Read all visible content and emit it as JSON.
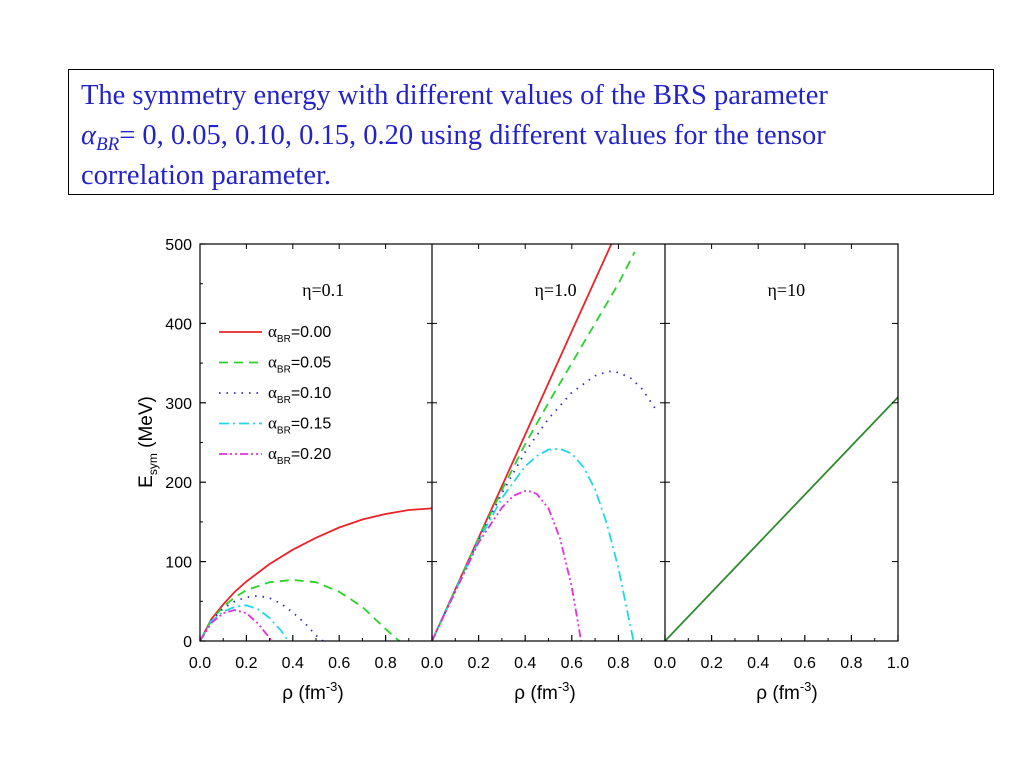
{
  "caption": {
    "line1": "The symmetry energy with different values of the BRS parameter",
    "alpha_symbol": "α",
    "alpha_sub": "BR",
    "line2_rest": "= 0, 0.05, 0.10, 0.15, 0.20 using different values for the tensor",
    "line3": "correlation parameter."
  },
  "chart_data": {
    "type": "line",
    "ylabel": "E",
    "ylabel_sub": "sym",
    "ylabel_unit": " (MeV)",
    "xlabel_base": "ρ (fm",
    "xlabel_exp": "-3",
    "xlabel_close": ")",
    "ylim": [
      0,
      500
    ],
    "xlim": [
      0,
      1.0
    ],
    "y_ticks": [
      "0",
      "100",
      "200",
      "300",
      "400",
      "500"
    ],
    "x_ticks": [
      [
        "0.0",
        "0.2",
        "0.4",
        "0.6",
        "0.8"
      ],
      [
        "0.0",
        "0.2",
        "0.4",
        "0.6",
        "0.8"
      ],
      [
        "0.0",
        "0.2",
        "0.4",
        "0.6",
        "0.8",
        "1.0"
      ]
    ],
    "legend": {
      "placement": "upper-left of first panel",
      "symbol": "α",
      "subscript": "BR",
      "entries": [
        "=0.00",
        "=0.05",
        "=0.10",
        "=0.15",
        "=0.20"
      ]
    },
    "series_styles": [
      {
        "color": "#e8242a",
        "dash": ""
      },
      {
        "color": "#2bd12b",
        "dash": "9,6"
      },
      {
        "color": "#2a2ad8",
        "dash": "1.5,6"
      },
      {
        "color": "#1ed8e8",
        "dash": "10,4,2,4"
      },
      {
        "color": "#e030e0",
        "dash": "8,3,2,3,2,3"
      }
    ],
    "panels": [
      {
        "label": "η=0.1",
        "series": [
          {
            "x": [
              0,
              0.05,
              0.1,
              0.15,
              0.2,
              0.3,
              0.4,
              0.5,
              0.6,
              0.7,
              0.8,
              0.9,
              1.0
            ],
            "y": [
              0,
              28,
              46,
              62,
              75,
              97,
              115,
              130,
              143,
              153,
              160,
              165,
              167
            ]
          },
          {
            "x": [
              0,
              0.05,
              0.1,
              0.15,
              0.2,
              0.3,
              0.4,
              0.5,
              0.6,
              0.7,
              0.8,
              0.86
            ],
            "y": [
              0,
              27,
              43,
              55,
              64,
              74,
              77,
              74,
              62,
              43,
              15,
              0
            ]
          },
          {
            "x": [
              0,
              0.05,
              0.1,
              0.15,
              0.2,
              0.25,
              0.3,
              0.35,
              0.4,
              0.45,
              0.5,
              0.53
            ],
            "y": [
              0,
              26,
              41,
              50,
              55,
              57,
              54,
              47,
              36,
              23,
              7,
              0
            ]
          },
          {
            "x": [
              0,
              0.05,
              0.1,
              0.15,
              0.2,
              0.25,
              0.3,
              0.35,
              0.38
            ],
            "y": [
              0,
              25,
              37,
              43,
              45,
              40,
              29,
              13,
              0
            ]
          },
          {
            "x": [
              0,
              0.05,
              0.1,
              0.15,
              0.2,
              0.25,
              0.28,
              0.31
            ],
            "y": [
              0,
              23,
              35,
              39,
              35,
              22,
              11,
              0
            ]
          }
        ]
      },
      {
        "label": "η=1.0",
        "series": [
          {
            "x": [
              0,
              0.2,
              0.4,
              0.6,
              0.77
            ],
            "y": [
              0,
              130,
              260,
              390,
              500
            ]
          },
          {
            "x": [
              0,
              0.2,
              0.3,
              0.4,
              0.5,
              0.6,
              0.7,
              0.8,
              0.87
            ],
            "y": [
              0,
              129,
              190,
              248,
              300,
              350,
              400,
              450,
              490
            ]
          },
          {
            "x": [
              0,
              0.2,
              0.3,
              0.4,
              0.5,
              0.6,
              0.7,
              0.75,
              0.78,
              0.85,
              0.9,
              0.96
            ],
            "y": [
              0,
              127,
              186,
              238,
              280,
              313,
              334,
              339,
              340,
              332,
              318,
              292
            ]
          },
          {
            "x": [
              0,
              0.2,
              0.3,
              0.4,
              0.45,
              0.5,
              0.55,
              0.6,
              0.65,
              0.7,
              0.75,
              0.8,
              0.84,
              0.865
            ],
            "y": [
              0,
              126,
              180,
              220,
              233,
              241,
              242,
              236,
              219,
              191,
              148,
              92,
              35,
              0
            ]
          },
          {
            "x": [
              0,
              0.2,
              0.3,
              0.35,
              0.4,
              0.43,
              0.45,
              0.5,
              0.55,
              0.6,
              0.64
            ],
            "y": [
              0,
              124,
              168,
              183,
              189,
              188,
              185,
              167,
              129,
              68,
              0
            ]
          }
        ]
      },
      {
        "label": "η=10",
        "single_color": "#2f8a2f",
        "series": [
          {
            "x": [
              0,
              1.0
            ],
            "y": [
              0,
              307
            ]
          }
        ]
      }
    ]
  }
}
